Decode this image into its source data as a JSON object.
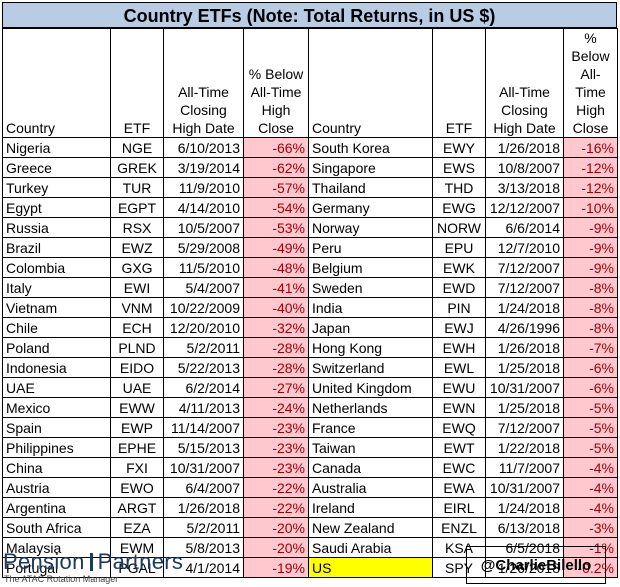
{
  "title": "Country ETFs (Note: Total Returns, in US $)",
  "headers": {
    "country": "Country",
    "etf": "ETF",
    "date": "All-Time Closing High Date",
    "pct": "% Below All-Time High Close"
  },
  "left_rows": [
    {
      "country": "Nigeria",
      "etf": "NGE",
      "date": "6/10/2013",
      "pct": "-66%"
    },
    {
      "country": "Greece",
      "etf": "GREK",
      "date": "3/19/2014",
      "pct": "-62%"
    },
    {
      "country": "Turkey",
      "etf": "TUR",
      "date": "11/9/2010",
      "pct": "-57%"
    },
    {
      "country": "Egypt",
      "etf": "EGPT",
      "date": "4/14/2010",
      "pct": "-54%"
    },
    {
      "country": "Russia",
      "etf": "RSX",
      "date": "10/5/2007",
      "pct": "-53%"
    },
    {
      "country": "Brazil",
      "etf": "EWZ",
      "date": "5/29/2008",
      "pct": "-49%"
    },
    {
      "country": "Colombia",
      "etf": "GXG",
      "date": "11/5/2010",
      "pct": "-48%"
    },
    {
      "country": "Italy",
      "etf": "EWI",
      "date": "5/4/2007",
      "pct": "-41%"
    },
    {
      "country": "Vietnam",
      "etf": "VNM",
      "date": "10/22/2009",
      "pct": "-40%"
    },
    {
      "country": "Chile",
      "etf": "ECH",
      "date": "12/20/2010",
      "pct": "-32%"
    },
    {
      "country": "Poland",
      "etf": "PLND",
      "date": "5/2/2011",
      "pct": "-28%"
    },
    {
      "country": "Indonesia",
      "etf": "EIDO",
      "date": "5/22/2013",
      "pct": "-28%"
    },
    {
      "country": "UAE",
      "etf": "UAE",
      "date": "6/2/2014",
      "pct": "-27%"
    },
    {
      "country": "Mexico",
      "etf": "EWW",
      "date": "4/11/2013",
      "pct": "-24%"
    },
    {
      "country": "Spain",
      "etf": "EWP",
      "date": "11/14/2007",
      "pct": "-23%"
    },
    {
      "country": "Philippines",
      "etf": "EPHE",
      "date": "5/15/2013",
      "pct": "-23%"
    },
    {
      "country": "China",
      "etf": "FXI",
      "date": "10/31/2007",
      "pct": "-23%"
    },
    {
      "country": "Austria",
      "etf": "EWO",
      "date": "6/4/2007",
      "pct": "-22%"
    },
    {
      "country": "Argentina",
      "etf": "ARGT",
      "date": "1/26/2018",
      "pct": "-22%"
    },
    {
      "country": "South Africa",
      "etf": "EZA",
      "date": "5/2/2011",
      "pct": "-20%"
    },
    {
      "country": "Malaysia",
      "etf": "EWM",
      "date": "5/8/2013",
      "pct": "-20%"
    },
    {
      "country": "Portugal",
      "etf": "PGAL",
      "date": "4/1/2014",
      "pct": "-19%"
    }
  ],
  "right_rows": [
    {
      "country": "South Korea",
      "etf": "EWY",
      "date": "1/26/2018",
      "pct": "-16%"
    },
    {
      "country": "Singapore",
      "etf": "EWS",
      "date": "10/8/2007",
      "pct": "-12%"
    },
    {
      "country": "Thailand",
      "etf": "THD",
      "date": "3/13/2018",
      "pct": "-12%"
    },
    {
      "country": "Germany",
      "etf": "EWG",
      "date": "12/12/2007",
      "pct": "-10%"
    },
    {
      "country": "Norway",
      "etf": "NORW",
      "date": "6/6/2014",
      "pct": "-9%"
    },
    {
      "country": "Peru",
      "etf": "EPU",
      "date": "12/7/2010",
      "pct": "-9%"
    },
    {
      "country": "Belgium",
      "etf": "EWK",
      "date": "7/12/2007",
      "pct": "-9%"
    },
    {
      "country": "Sweden",
      "etf": "EWD",
      "date": "7/12/2007",
      "pct": "-8%"
    },
    {
      "country": "India",
      "etf": "PIN",
      "date": "1/24/2018",
      "pct": "-8%"
    },
    {
      "country": "Japan",
      "etf": "EWJ",
      "date": "4/26/1996",
      "pct": "-8%"
    },
    {
      "country": "Hong Kong",
      "etf": "EWH",
      "date": "1/26/2018",
      "pct": "-7%"
    },
    {
      "country": "Switzerland",
      "etf": "EWL",
      "date": "1/25/2018",
      "pct": "-6%"
    },
    {
      "country": "United Kingdom",
      "etf": "EWU",
      "date": "10/31/2007",
      "pct": "-6%"
    },
    {
      "country": "Netherlands",
      "etf": "EWN",
      "date": "1/25/2018",
      "pct": "-5%"
    },
    {
      "country": "France",
      "etf": "EWQ",
      "date": "7/12/2007",
      "pct": "-5%"
    },
    {
      "country": "Taiwan",
      "etf": "EWT",
      "date": "1/22/2018",
      "pct": "-5%"
    },
    {
      "country": "Canada",
      "etf": "EWC",
      "date": "11/7/2007",
      "pct": "-4%"
    },
    {
      "country": "Australia",
      "etf": "EWA",
      "date": "10/31/2007",
      "pct": "-4%"
    },
    {
      "country": "Ireland",
      "etf": "EIRL",
      "date": "1/24/2018",
      "pct": "-4%"
    },
    {
      "country": "New Zealand",
      "etf": "ENZL",
      "date": "6/13/2018",
      "pct": "-3%"
    },
    {
      "country": "Saudi Arabia",
      "etf": "KSA",
      "date": "6/5/2018",
      "pct": "-1%"
    },
    {
      "country": "US",
      "etf": "SPY",
      "date": "1/26/2018",
      "pct": "-0.2%",
      "highlight": "#ffff00"
    }
  ],
  "footer": {
    "logo_left": "Pension",
    "logo_right": "Partners",
    "logo_tagline": "The ATAC Rotation Manager",
    "handle": "@CharlieBilello"
  },
  "colors": {
    "title_bg": "#b8cce4",
    "negative_bg": "#ffc7ce",
    "negative_text": "#9c0006",
    "highlight": "#ffff00"
  }
}
